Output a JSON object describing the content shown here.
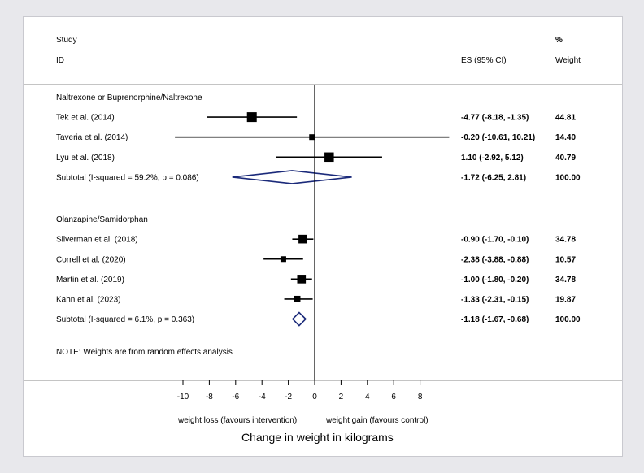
{
  "chart_data": {
    "type": "forest",
    "header": {
      "study": "Study",
      "id": "ID",
      "es": "ES (95% CI)",
      "pct": "%",
      "weight": "Weight"
    },
    "groups": [
      {
        "label": "Naltrexone or Buprenorphine/Naltrexone",
        "studies": [
          {
            "name": "Tek et al. (2014)",
            "es": -4.77,
            "lo": -8.18,
            "hi": -1.35,
            "es_text": "-4.77 (-8.18, -1.35)",
            "weight": "44.81"
          },
          {
            "name": "Taveria et al. (2014)",
            "es": -0.2,
            "lo": -10.61,
            "hi": 10.21,
            "es_text": "-0.20 (-10.61, 10.21)",
            "weight": "14.40"
          },
          {
            "name": "Lyu et al. (2018)",
            "es": 1.1,
            "lo": -2.92,
            "hi": 5.12,
            "es_text": "1.10 (-2.92, 5.12)",
            "weight": "40.79"
          }
        ],
        "subtotal": {
          "label": "Subtotal  (I-squared = 59.2%, p = 0.086)",
          "es": -1.72,
          "lo": -6.25,
          "hi": 2.81,
          "es_text": "-1.72 (-6.25, 2.81)",
          "weight": "100.00"
        }
      },
      {
        "label": "Olanzapine/Samidorphan",
        "studies": [
          {
            "name": "Silverman et al. (2018)",
            "es": -0.9,
            "lo": -1.7,
            "hi": -0.1,
            "es_text": "-0.90 (-1.70, -0.10)",
            "weight": "34.78"
          },
          {
            "name": "Correll et al. (2020)",
            "es": -2.38,
            "lo": -3.88,
            "hi": -0.88,
            "es_text": "-2.38 (-3.88, -0.88)",
            "weight": "10.57"
          },
          {
            "name": "Martin et al. (2019)",
            "es": -1.0,
            "lo": -1.8,
            "hi": -0.2,
            "es_text": "-1.00 (-1.80, -0.20)",
            "weight": "34.78"
          },
          {
            "name": "Kahn et al. (2023)",
            "es": -1.33,
            "lo": -2.31,
            "hi": -0.15,
            "es_text": "-1.33 (-2.31, -0.15)",
            "weight": "19.87"
          }
        ],
        "subtotal": {
          "label": "Subtotal  (I-squared = 6.1%, p = 0.363)",
          "es": -1.18,
          "lo": -1.67,
          "hi": -0.68,
          "es_text": "-1.18 (-1.67, -0.68)",
          "weight": "100.00"
        }
      }
    ],
    "note": "NOTE: Weights are from random effects analysis",
    "x_ticks": [
      -10,
      -8,
      -6,
      -4,
      -2,
      0,
      2,
      4,
      6,
      8
    ],
    "x_tick_labels": [
      "-10",
      "-8",
      "-6",
      "-4",
      "-2",
      "0",
      "2",
      "4",
      "6",
      "8"
    ],
    "xlim": [
      -10,
      8
    ],
    "null_line": 0,
    "left_label": "weight loss (favours intervention)",
    "right_label": "weight gain (favours control)",
    "xlabel": "Change in weight in kilograms",
    "colors": {
      "marker": "#000000",
      "diamond": "#1b2a7a",
      "panel": "#ffffff",
      "background": "#e8e8ec"
    }
  }
}
